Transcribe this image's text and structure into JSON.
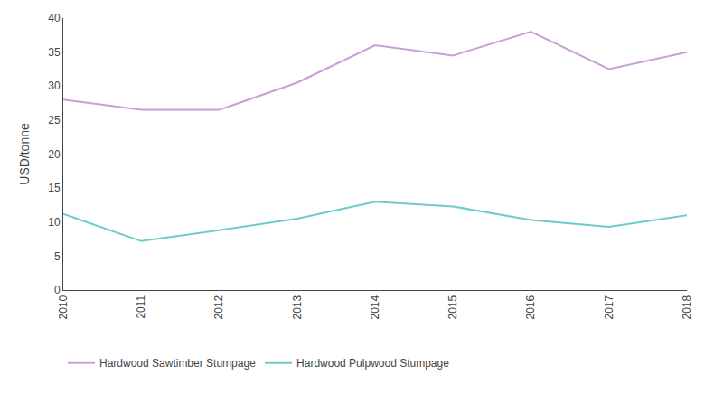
{
  "chart_data": {
    "type": "line",
    "x": [
      2010,
      2011,
      2012,
      2013,
      2014,
      2015,
      2016,
      2017,
      2018
    ],
    "series": [
      {
        "name": "Hardwood Sawtimber Stumpage",
        "color": "#c8a0d8",
        "values": [
          28.0,
          26.5,
          26.5,
          30.5,
          36.0,
          34.5,
          38.0,
          32.5,
          35.0
        ]
      },
      {
        "name": "Hardwood Pulpwood Stumpage",
        "color": "#6dccc8",
        "values": [
          11.2,
          7.2,
          8.8,
          10.5,
          13.0,
          12.3,
          10.3,
          9.3,
          11.0
        ]
      }
    ],
    "ylabel": "USD/tonne",
    "xlim": [
      2010,
      2018
    ],
    "xticks": [
      2010,
      2011,
      2012,
      2013,
      2014,
      2015,
      2016,
      2017,
      2018
    ],
    "ylim": [
      0,
      40
    ],
    "yticks": [
      0,
      5,
      10,
      15,
      20,
      25,
      30,
      35,
      40
    ],
    "grid": false,
    "legend": "lower left"
  }
}
